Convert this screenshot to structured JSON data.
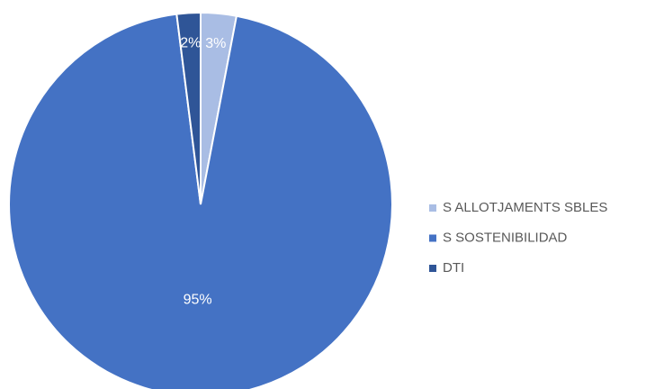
{
  "chart_data": {
    "type": "pie",
    "categories": [
      "S ALLOTJAMENTS SBLES",
      "S SOSTENIBILIDAD",
      "DTI"
    ],
    "values": [
      3,
      95,
      2
    ],
    "value_labels": [
      "3%",
      "95%",
      "2%"
    ],
    "colors": [
      "#a9bde4",
      "#4472c4",
      "#2f5597"
    ],
    "legend": "right"
  }
}
